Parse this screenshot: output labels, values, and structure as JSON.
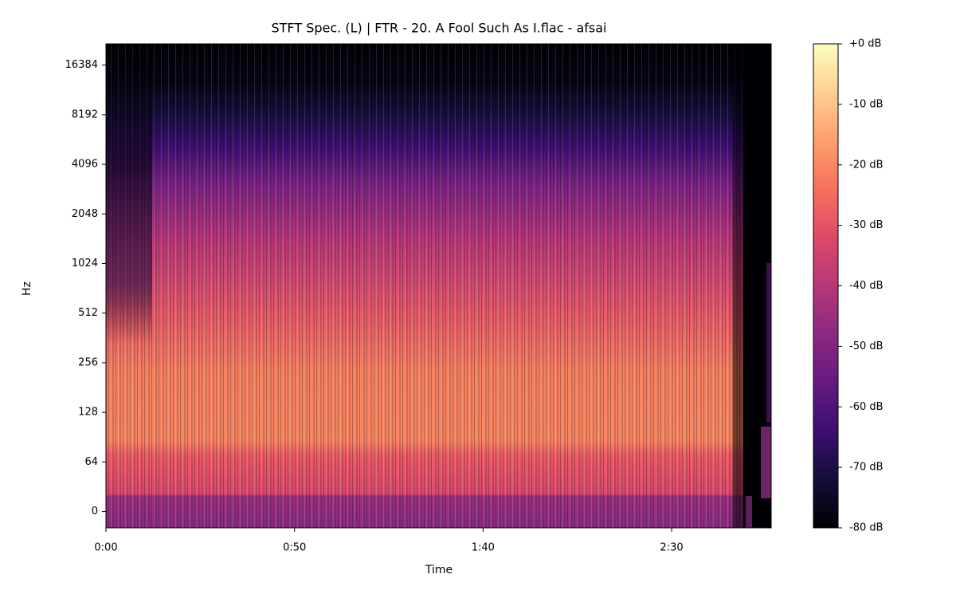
{
  "chart_data": {
    "type": "spectrogram",
    "title": "STFT Spec. (L) | FTR - 20. A Fool Such As I.flac - afsai",
    "x_label": "Time",
    "y_label": "Hz",
    "xlim": [
      0,
      176.4
    ],
    "xticks": [
      {
        "value": 0,
        "label": "0:00"
      },
      {
        "value": 50,
        "label": "0:50"
      },
      {
        "value": 100,
        "label": "1:40"
      },
      {
        "value": 150,
        "label": "2:30"
      }
    ],
    "y_scale": "symlog",
    "linthresh": 64,
    "ylim": [
      -21,
      22050
    ],
    "yticks": [
      0,
      64,
      128,
      256,
      512,
      1024,
      2048,
      4096,
      8192,
      16384
    ],
    "colormap": "magma",
    "colorbar": {
      "zlim": [
        -80,
        0
      ],
      "ticks": [
        {
          "value": 0,
          "label": "+0 dB"
        },
        {
          "value": -10,
          "label": "-10 dB"
        },
        {
          "value": -20,
          "label": "-20 dB"
        },
        {
          "value": -30,
          "label": "-30 dB"
        },
        {
          "value": -40,
          "label": "-40 dB"
        },
        {
          "value": -50,
          "label": "-50 dB"
        },
        {
          "value": -60,
          "label": "-60 dB"
        },
        {
          "value": -70,
          "label": "-70 dB"
        },
        {
          "value": -80,
          "label": "-80 dB"
        }
      ]
    }
  }
}
